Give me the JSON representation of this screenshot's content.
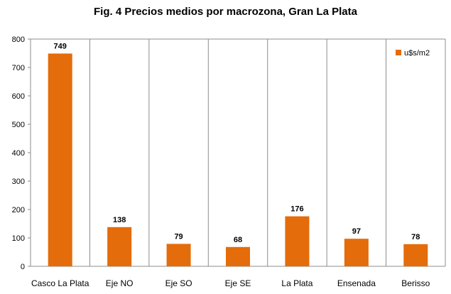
{
  "chart_data": {
    "type": "bar",
    "title": "Fig. 4 Precios medios por macrozona, Gran La Plata",
    "xlabel": "",
    "ylabel": "",
    "categories": [
      "Casco La Plata",
      "Eje NO",
      "Eje SO",
      "Eje SE",
      "La Plata",
      "Ensenada",
      "Berisso"
    ],
    "series": [
      {
        "name": "u$s/m2",
        "values": [
          749,
          138,
          79,
          68,
          176,
          97,
          78
        ],
        "color": "#E46C0A"
      }
    ],
    "ylim": [
      0,
      800
    ],
    "yticks": [
      0,
      100,
      200,
      300,
      400,
      500,
      600,
      700,
      800
    ],
    "grid": "vertical",
    "legend": "top-right"
  }
}
